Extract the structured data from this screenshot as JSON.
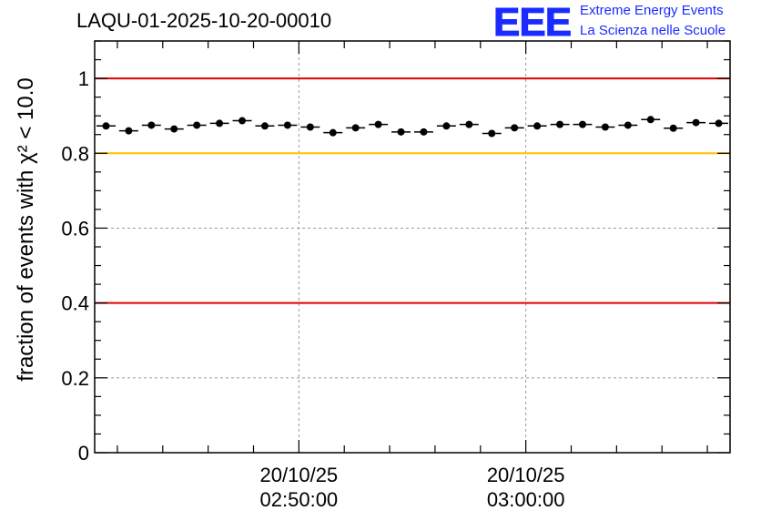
{
  "header": {
    "title": "LAQU-01-2025-10-20-00010",
    "logo_text": "EEE",
    "logo_line1": "Extreme Energy Events",
    "logo_line2": "La Scienza nelle Scuole"
  },
  "colors": {
    "upper_limit": "#e00000",
    "lower_limit": "#e00000",
    "warning": "#ffc000",
    "logo": "#1a2bff"
  },
  "chart_data": {
    "type": "scatter",
    "title": "LAQU-01-2025-10-20-00010",
    "ylabel": "fraction of events with χ² < 10.0",
    "xlabel": "",
    "ylim": [
      0,
      1.1
    ],
    "xlim_minutes": [
      -9,
      19
    ],
    "y_ticks": [
      "0",
      "0.2",
      "0.4",
      "0.6",
      "0.8",
      "1"
    ],
    "x_ticks": [
      {
        "minute": 0,
        "date": "20/10/25",
        "time": "02:50:00"
      },
      {
        "minute": 10,
        "date": "20/10/25",
        "time": "03:00:00"
      }
    ],
    "reference_lines": [
      {
        "y": 1.0,
        "color": "red"
      },
      {
        "y": 0.8,
        "color": "orange"
      },
      {
        "y": 0.4,
        "color": "red"
      }
    ],
    "grid": true,
    "x_minutes": [
      -8.5,
      -7.5,
      -6.5,
      -5.5,
      -4.5,
      -3.5,
      -2.5,
      -1.5,
      -0.5,
      0.5,
      1.5,
      2.5,
      3.5,
      4.5,
      5.5,
      6.5,
      7.5,
      8.5,
      9.5,
      10.5,
      11.5,
      12.5,
      13.5,
      14.5,
      15.5,
      16.5,
      17.5,
      18.5
    ],
    "values": [
      0.873,
      0.86,
      0.875,
      0.865,
      0.875,
      0.88,
      0.887,
      0.873,
      0.875,
      0.87,
      0.855,
      0.868,
      0.877,
      0.857,
      0.857,
      0.873,
      0.877,
      0.853,
      0.868,
      0.873,
      0.877,
      0.877,
      0.87,
      0.875,
      0.89,
      0.867,
      0.882,
      0.88
    ],
    "bin_half_width_minutes": 0.5
  }
}
